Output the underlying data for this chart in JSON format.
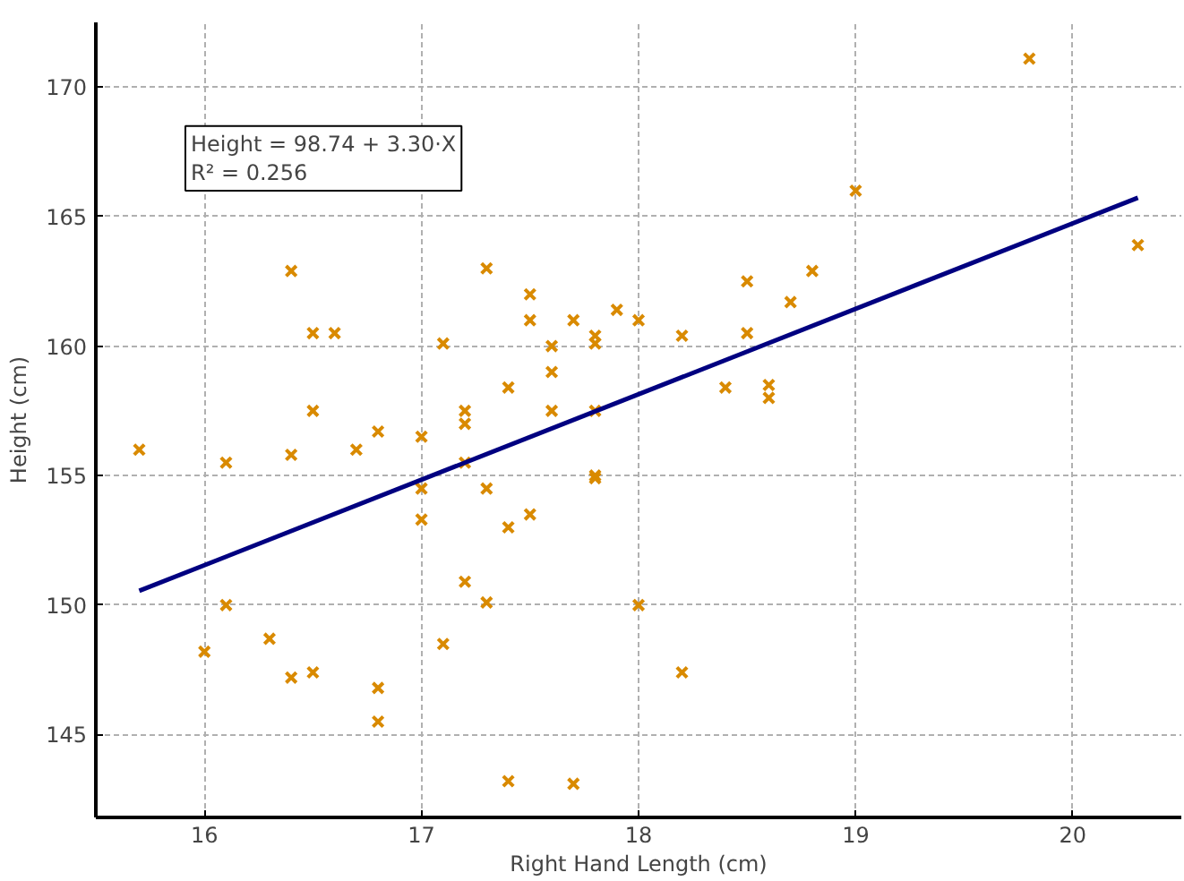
{
  "chart_data": {
    "type": "scatter",
    "xlabel": "Right Hand Length (cm)",
    "ylabel": "Height (cm)",
    "annotations": [
      "Height = 98.74 + 3.30·X\nR² = 0.256"
    ],
    "xlim": [
      15.5,
      20.5
    ],
    "ylim": [
      141.8,
      172.5
    ],
    "xticks": [
      16,
      17,
      18,
      19,
      20
    ],
    "yticks": [
      145,
      150,
      155,
      160,
      165,
      170
    ],
    "grid": true,
    "series": [
      {
        "marker": "cross",
        "color": "#d98a00",
        "x": [
          15.7,
          16.0,
          16.1,
          16.1,
          16.3,
          16.4,
          16.4,
          16.4,
          16.5,
          16.5,
          16.5,
          16.6,
          16.7,
          16.8,
          16.8,
          16.8,
          17.0,
          17.0,
          17.0,
          17.1,
          17.1,
          17.2,
          17.2,
          17.2,
          17.2,
          17.3,
          17.3,
          17.3,
          17.4,
          17.4,
          17.4,
          17.5,
          17.5,
          17.5,
          17.6,
          17.6,
          17.6,
          17.7,
          17.7,
          17.8,
          17.8,
          17.8,
          17.8,
          17.8,
          17.9,
          18.0,
          18.0,
          18.2,
          18.2,
          18.4,
          18.5,
          18.5,
          18.6,
          18.6,
          18.7,
          18.8,
          19.0,
          19.8,
          20.3
        ],
        "values": [
          156.0,
          148.2,
          155.5,
          150.0,
          148.7,
          162.9,
          155.8,
          147.2,
          160.5,
          157.5,
          147.4,
          160.5,
          156.0,
          156.7,
          146.8,
          145.5,
          156.5,
          154.5,
          153.3,
          160.1,
          148.5,
          157.5,
          157.0,
          155.5,
          150.9,
          163.0,
          154.5,
          150.1,
          158.4,
          153.0,
          143.2,
          162.0,
          161.0,
          153.5,
          160.0,
          159.0,
          157.5,
          161.0,
          143.1,
          160.4,
          160.1,
          157.5,
          155.0,
          154.9,
          161.4,
          161.0,
          150.0,
          160.4,
          147.4,
          158.4,
          162.5,
          160.5,
          158.5,
          158.0,
          161.7,
          162.9,
          166.0,
          171.1,
          163.9
        ]
      },
      {
        "type": "line",
        "marker": "none",
        "color": "#000080",
        "line_style": "solid",
        "x": [
          15.7,
          20.3
        ],
        "values": [
          150.55,
          165.73
        ]
      }
    ]
  }
}
